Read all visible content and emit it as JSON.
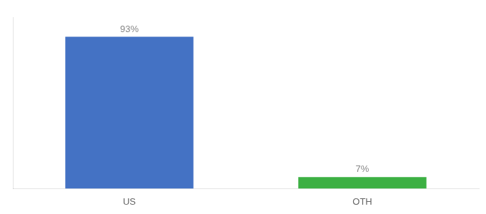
{
  "chart_data": {
    "type": "bar",
    "categories": [
      "US",
      "OTH"
    ],
    "values": [
      93,
      7
    ],
    "colors": [
      "#4472c4",
      "#3cb043"
    ],
    "value_labels": [
      "93%",
      "7%"
    ],
    "data_labels": true,
    "ylim": [
      0,
      105
    ],
    "grid": false,
    "tick_labels": "x"
  }
}
